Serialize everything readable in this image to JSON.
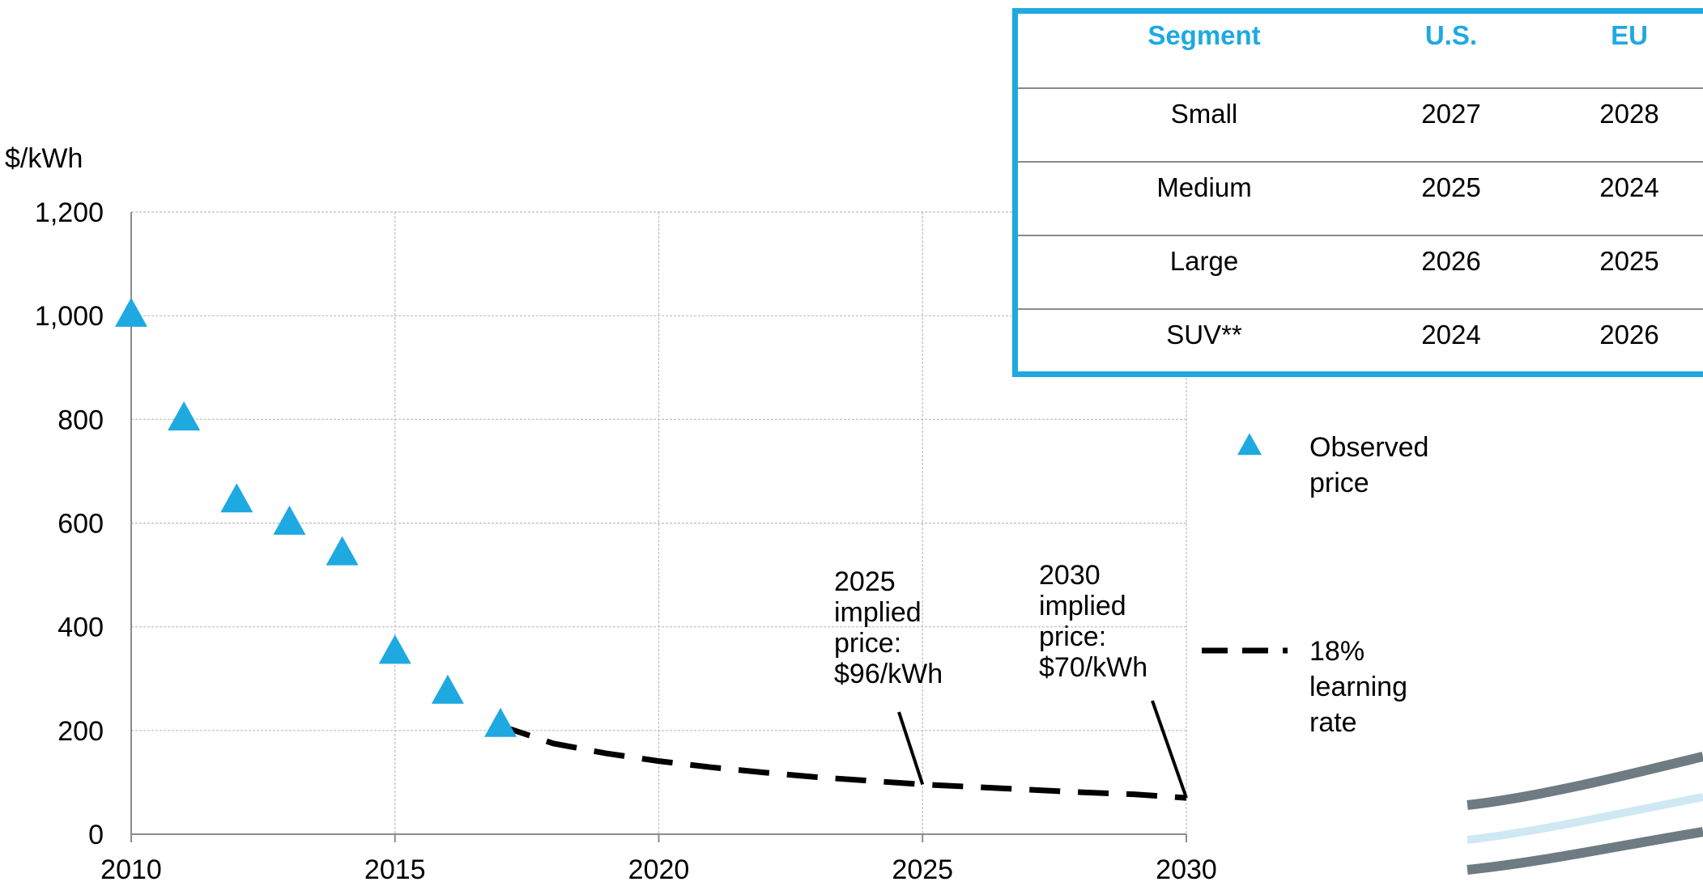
{
  "chart_data": {
    "type": "scatter",
    "y_unit_label": "$/kWh",
    "x_ticks": [
      "2010",
      "2015",
      "2020",
      "2025",
      "2030"
    ],
    "y_ticks": [
      "0",
      "200",
      "400",
      "600",
      "800",
      "1,000",
      "1,200"
    ],
    "xlim": [
      2010,
      2030
    ],
    "ylim": [
      0,
      1200
    ],
    "grid": true,
    "series": [
      {
        "name": "Observed price",
        "marker": "triangle",
        "color": "#1ea9e1",
        "points": [
          {
            "x": 2010,
            "y": 1000
          },
          {
            "x": 2011,
            "y": 800
          },
          {
            "x": 2012,
            "y": 642
          },
          {
            "x": 2013,
            "y": 599
          },
          {
            "x": 2014,
            "y": 540
          },
          {
            "x": 2015,
            "y": 350
          },
          {
            "x": 2016,
            "y": 273
          },
          {
            "x": 2017,
            "y": 209
          }
        ]
      },
      {
        "name": "18% learning rate",
        "style": "dashed",
        "color": "#000000",
        "points": [
          {
            "x": 2017,
            "y": 209
          },
          {
            "x": 2018,
            "y": 175
          },
          {
            "x": 2019,
            "y": 156
          },
          {
            "x": 2020,
            "y": 141
          },
          {
            "x": 2021,
            "y": 129
          },
          {
            "x": 2022,
            "y": 119
          },
          {
            "x": 2023,
            "y": 110
          },
          {
            "x": 2024,
            "y": 103
          },
          {
            "x": 2025,
            "y": 96
          },
          {
            "x": 2026,
            "y": 91
          },
          {
            "x": 2027,
            "y": 86
          },
          {
            "x": 2028,
            "y": 81
          },
          {
            "x": 2029,
            "y": 77
          },
          {
            "x": 2030,
            "y": 70
          }
        ]
      }
    ],
    "annotations": [
      {
        "lines": [
          "2025",
          "implied",
          "price:",
          "$96/kWh"
        ],
        "x": 2025,
        "y": 96
      },
      {
        "lines": [
          "2030",
          "implied",
          "price:",
          "$70/kWh"
        ],
        "x": 2030,
        "y": 70
      }
    ],
    "legend": [
      {
        "lines": [
          "Observed",
          "price"
        ],
        "marker": "triangle"
      },
      {
        "lines": [
          "18%",
          "learning",
          "rate"
        ],
        "marker": "dash"
      }
    ]
  },
  "table": {
    "headers": [
      "Segment",
      "U.S.",
      "EU"
    ],
    "rows": [
      [
        "Small",
        "2027",
        "2028"
      ],
      [
        "Medium",
        "2025",
        "2024"
      ],
      [
        "Large",
        "2026",
        "2025"
      ],
      [
        "SUV**",
        "2024",
        "2026"
      ]
    ]
  },
  "colors": {
    "accent": "#1ea9e1",
    "grid": "#bdbdbd",
    "table_divider": "#8a8a8a"
  }
}
